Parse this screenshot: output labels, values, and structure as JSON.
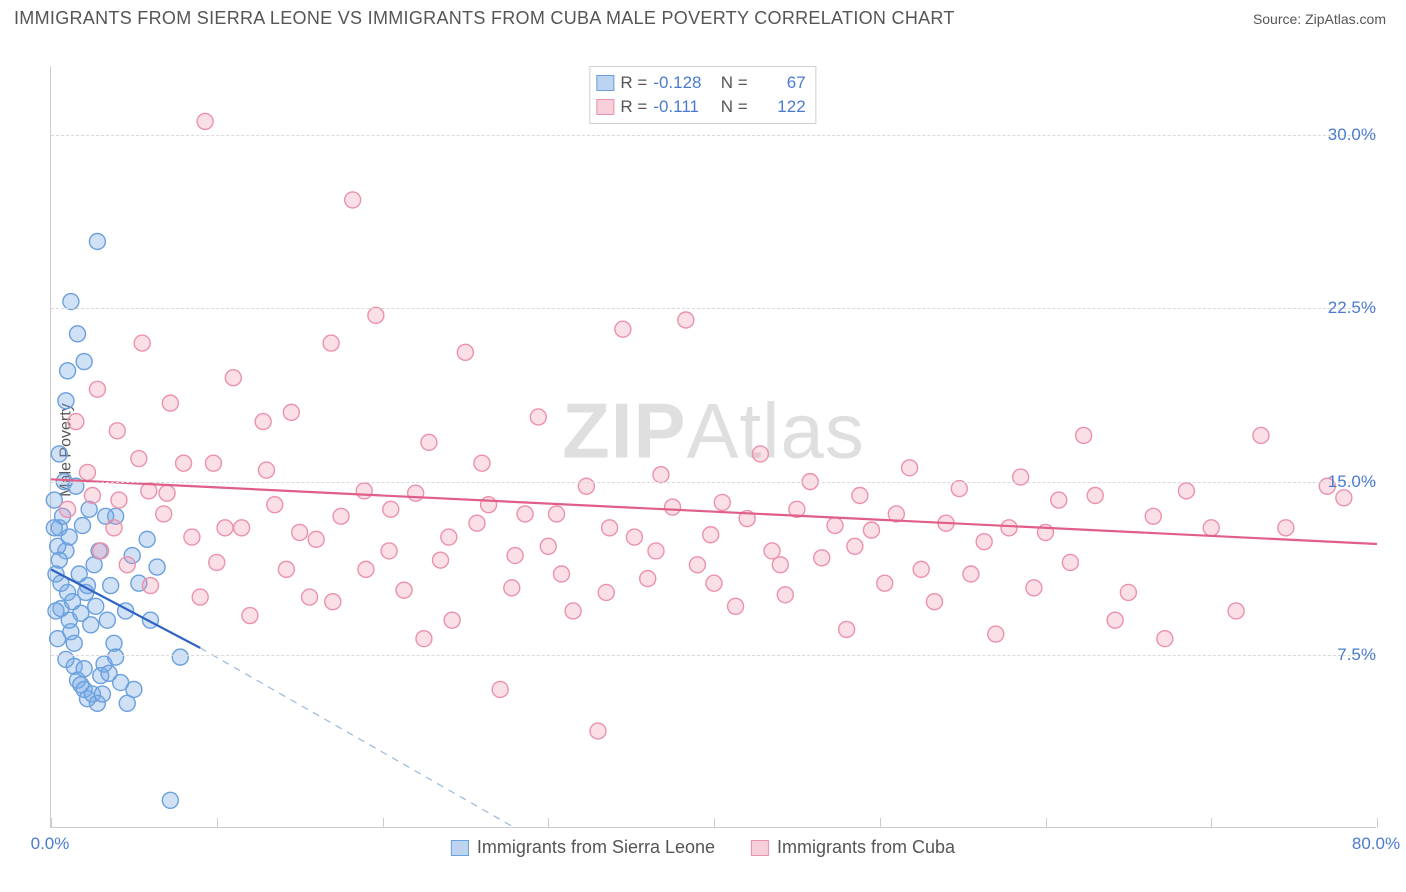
{
  "title": "IMMIGRANTS FROM SIERRA LEONE VS IMMIGRANTS FROM CUBA MALE POVERTY CORRELATION CHART",
  "source_label": "Source: ",
  "source_name": "ZipAtlas.com",
  "watermark": {
    "bold": "ZIP",
    "rest": "Atlas"
  },
  "y_axis_title": "Male Poverty",
  "chart": {
    "type": "scatter-with-regression",
    "background_color": "#ffffff",
    "grid_color": "#d9d9d9",
    "axis_color": "#cccccc",
    "tick_label_color": "#4a7bd0",
    "label_fontsize": 17,
    "title_fontsize": 18,
    "xlim": [
      0,
      80
    ],
    "ylim": [
      0,
      33
    ],
    "x_ticks": [
      0,
      10,
      20,
      30,
      40,
      50,
      60,
      70,
      80
    ],
    "x_tick_labels": {
      "0": "0.0%",
      "80": "80.0%"
    },
    "y_ticks": [
      7.5,
      15.0,
      22.5,
      30.0
    ],
    "y_tick_labels": [
      "7.5%",
      "15.0%",
      "22.5%",
      "30.0%"
    ],
    "marker_radius": 8,
    "marker_stroke_width": 1.4,
    "trend_line_width": 2.2,
    "series": [
      {
        "id": "sierra_leone",
        "label": "Immigrants from Sierra Leone",
        "fill_color": "rgba(120,170,230,0.35)",
        "stroke_color": "#6aa0de",
        "swatch_fill": "#bcd4f0",
        "swatch_border": "#6aa0de",
        "R": "-0.128",
        "N": "67",
        "trend": {
          "x1": 0,
          "y1": 11.2,
          "x2": 9,
          "y2": 7.8,
          "color": "#2f63c4"
        },
        "trend_dash": {
          "x1": 9,
          "y1": 7.8,
          "x2": 28,
          "y2": 0
        },
        "data": [
          [
            0.2,
            14.2
          ],
          [
            0.3,
            11.0
          ],
          [
            0.5,
            13.0
          ],
          [
            0.6,
            9.5
          ],
          [
            0.8,
            15.0
          ],
          [
            0.5,
            16.2
          ],
          [
            0.9,
            12.0
          ],
          [
            1.0,
            10.2
          ],
          [
            1.2,
            8.5
          ],
          [
            1.4,
            7.0
          ],
          [
            1.6,
            6.4
          ],
          [
            1.8,
            6.2
          ],
          [
            2.0,
            6.0
          ],
          [
            2.2,
            5.6
          ],
          [
            2.5,
            5.8
          ],
          [
            2.8,
            5.4
          ],
          [
            3.0,
            6.6
          ],
          [
            3.2,
            7.1
          ],
          [
            1.1,
            9.0
          ],
          [
            1.3,
            9.8
          ],
          [
            1.7,
            11.0
          ],
          [
            2.1,
            10.2
          ],
          [
            2.6,
            11.4
          ],
          [
            3.4,
            9.0
          ],
          [
            0.4,
            12.2
          ],
          [
            0.7,
            13.5
          ],
          [
            1.5,
            14.8
          ],
          [
            0.9,
            18.5
          ],
          [
            1.0,
            19.8
          ],
          [
            1.2,
            22.8
          ],
          [
            1.6,
            21.4
          ],
          [
            2.0,
            20.2
          ],
          [
            2.8,
            25.4
          ],
          [
            3.9,
            13.5
          ],
          [
            3.6,
            10.5
          ],
          [
            3.8,
            8.0
          ],
          [
            4.5,
            9.4
          ],
          [
            4.9,
            11.8
          ],
          [
            5.3,
            10.6
          ],
          [
            5.8,
            12.5
          ],
          [
            3.1,
            5.8
          ],
          [
            3.5,
            6.7
          ],
          [
            3.9,
            7.4
          ],
          [
            4.2,
            6.3
          ],
          [
            4.6,
            5.4
          ],
          [
            5.0,
            6.0
          ],
          [
            2.4,
            8.8
          ],
          [
            2.7,
            9.6
          ],
          [
            7.8,
            7.4
          ],
          [
            6.0,
            9.0
          ],
          [
            6.4,
            11.3
          ],
          [
            2.3,
            13.8
          ],
          [
            1.9,
            13.1
          ],
          [
            0.6,
            10.6
          ],
          [
            0.3,
            9.4
          ],
          [
            0.4,
            8.2
          ],
          [
            0.9,
            7.3
          ],
          [
            1.4,
            8.0
          ],
          [
            1.8,
            9.3
          ],
          [
            2.2,
            10.5
          ],
          [
            2.9,
            12.0
          ],
          [
            3.3,
            13.5
          ],
          [
            0.2,
            13.0
          ],
          [
            0.5,
            11.6
          ],
          [
            1.1,
            12.6
          ],
          [
            7.2,
            1.2
          ],
          [
            2.0,
            6.9
          ]
        ]
      },
      {
        "id": "cuba",
        "label": "Immigrants from Cuba",
        "fill_color": "rgba(240,150,175,0.30)",
        "stroke_color": "#ec91ab",
        "swatch_fill": "#f7cfd9",
        "swatch_border": "#ec91ab",
        "R": "-0.111",
        "N": "122",
        "trend": {
          "x1": 0,
          "y1": 15.1,
          "x2": 80,
          "y2": 12.3,
          "color": "#e05e87"
        },
        "data": [
          [
            1.0,
            13.8
          ],
          [
            2.2,
            15.4
          ],
          [
            3.0,
            12.0
          ],
          [
            4.1,
            14.2
          ],
          [
            5.3,
            16.0
          ],
          [
            6.0,
            10.5
          ],
          [
            7.2,
            18.4
          ],
          [
            8.5,
            12.6
          ],
          [
            9.3,
            30.6
          ],
          [
            9.8,
            15.8
          ],
          [
            10.5,
            13.0
          ],
          [
            6.8,
            13.6
          ],
          [
            2.5,
            14.4
          ],
          [
            3.8,
            13.0
          ],
          [
            4.6,
            11.4
          ],
          [
            5.9,
            14.6
          ],
          [
            11.0,
            19.5
          ],
          [
            12.0,
            9.2
          ],
          [
            12.8,
            17.6
          ],
          [
            13.5,
            14.0
          ],
          [
            14.2,
            11.2
          ],
          [
            15.0,
            12.8
          ],
          [
            15.6,
            10.0
          ],
          [
            16.9,
            21.0
          ],
          [
            17.5,
            13.5
          ],
          [
            18.2,
            27.2
          ],
          [
            18.9,
            14.6
          ],
          [
            19.6,
            22.2
          ],
          [
            20.4,
            12.0
          ],
          [
            21.3,
            10.3
          ],
          [
            22.0,
            14.5
          ],
          [
            22.8,
            16.7
          ],
          [
            23.5,
            11.6
          ],
          [
            24.2,
            9.0
          ],
          [
            25.0,
            20.6
          ],
          [
            25.7,
            13.2
          ],
          [
            26.4,
            14.0
          ],
          [
            27.1,
            6.0
          ],
          [
            27.8,
            10.4
          ],
          [
            28.6,
            13.6
          ],
          [
            29.4,
            17.8
          ],
          [
            30.0,
            12.2
          ],
          [
            30.8,
            11.0
          ],
          [
            31.5,
            9.4
          ],
          [
            32.3,
            14.8
          ],
          [
            33.0,
            4.2
          ],
          [
            33.7,
            13.0
          ],
          [
            34.5,
            21.6
          ],
          [
            35.2,
            12.6
          ],
          [
            36.0,
            10.8
          ],
          [
            36.8,
            15.3
          ],
          [
            37.5,
            13.9
          ],
          [
            38.3,
            22.0
          ],
          [
            39.0,
            11.4
          ],
          [
            39.8,
            12.7
          ],
          [
            40.5,
            14.1
          ],
          [
            41.3,
            9.6
          ],
          [
            42.0,
            13.4
          ],
          [
            42.8,
            16.2
          ],
          [
            43.5,
            12.0
          ],
          [
            44.3,
            10.1
          ],
          [
            45.0,
            13.8
          ],
          [
            45.8,
            15.0
          ],
          [
            46.5,
            11.7
          ],
          [
            47.3,
            13.1
          ],
          [
            48.0,
            8.6
          ],
          [
            48.8,
            14.4
          ],
          [
            49.5,
            12.9
          ],
          [
            50.3,
            10.6
          ],
          [
            51.0,
            13.6
          ],
          [
            51.8,
            15.6
          ],
          [
            52.5,
            11.2
          ],
          [
            53.3,
            9.8
          ],
          [
            54.0,
            13.2
          ],
          [
            54.8,
            14.7
          ],
          [
            55.5,
            11.0
          ],
          [
            56.3,
            12.4
          ],
          [
            57.0,
            8.4
          ],
          [
            57.8,
            13.0
          ],
          [
            58.5,
            15.2
          ],
          [
            59.3,
            10.4
          ],
          [
            60.0,
            12.8
          ],
          [
            60.8,
            14.2
          ],
          [
            61.5,
            11.5
          ],
          [
            62.3,
            17.0
          ],
          [
            63.0,
            14.4
          ],
          [
            64.2,
            9.0
          ],
          [
            65.0,
            10.2
          ],
          [
            66.5,
            13.5
          ],
          [
            67.2,
            8.2
          ],
          [
            68.5,
            14.6
          ],
          [
            70.0,
            13.0
          ],
          [
            71.5,
            9.4
          ],
          [
            73.0,
            17.0
          ],
          [
            74.5,
            13.0
          ],
          [
            77.0,
            14.8
          ],
          [
            78.0,
            14.3
          ],
          [
            1.5,
            17.6
          ],
          [
            2.8,
            19.0
          ],
          [
            4.0,
            17.2
          ],
          [
            5.5,
            21.0
          ],
          [
            7.0,
            14.5
          ],
          [
            8.0,
            15.8
          ],
          [
            9.0,
            10.0
          ],
          [
            10.0,
            11.5
          ],
          [
            11.5,
            13.0
          ],
          [
            13.0,
            15.5
          ],
          [
            14.5,
            18.0
          ],
          [
            16.0,
            12.5
          ],
          [
            17.0,
            9.8
          ],
          [
            19.0,
            11.2
          ],
          [
            20.5,
            13.8
          ],
          [
            22.5,
            8.2
          ],
          [
            24.0,
            12.6
          ],
          [
            26.0,
            15.8
          ],
          [
            28.0,
            11.8
          ],
          [
            30.5,
            13.6
          ],
          [
            33.5,
            10.2
          ],
          [
            36.5,
            12.0
          ],
          [
            40.0,
            10.6
          ],
          [
            44.0,
            11.4
          ],
          [
            48.5,
            12.2
          ]
        ]
      }
    ]
  }
}
